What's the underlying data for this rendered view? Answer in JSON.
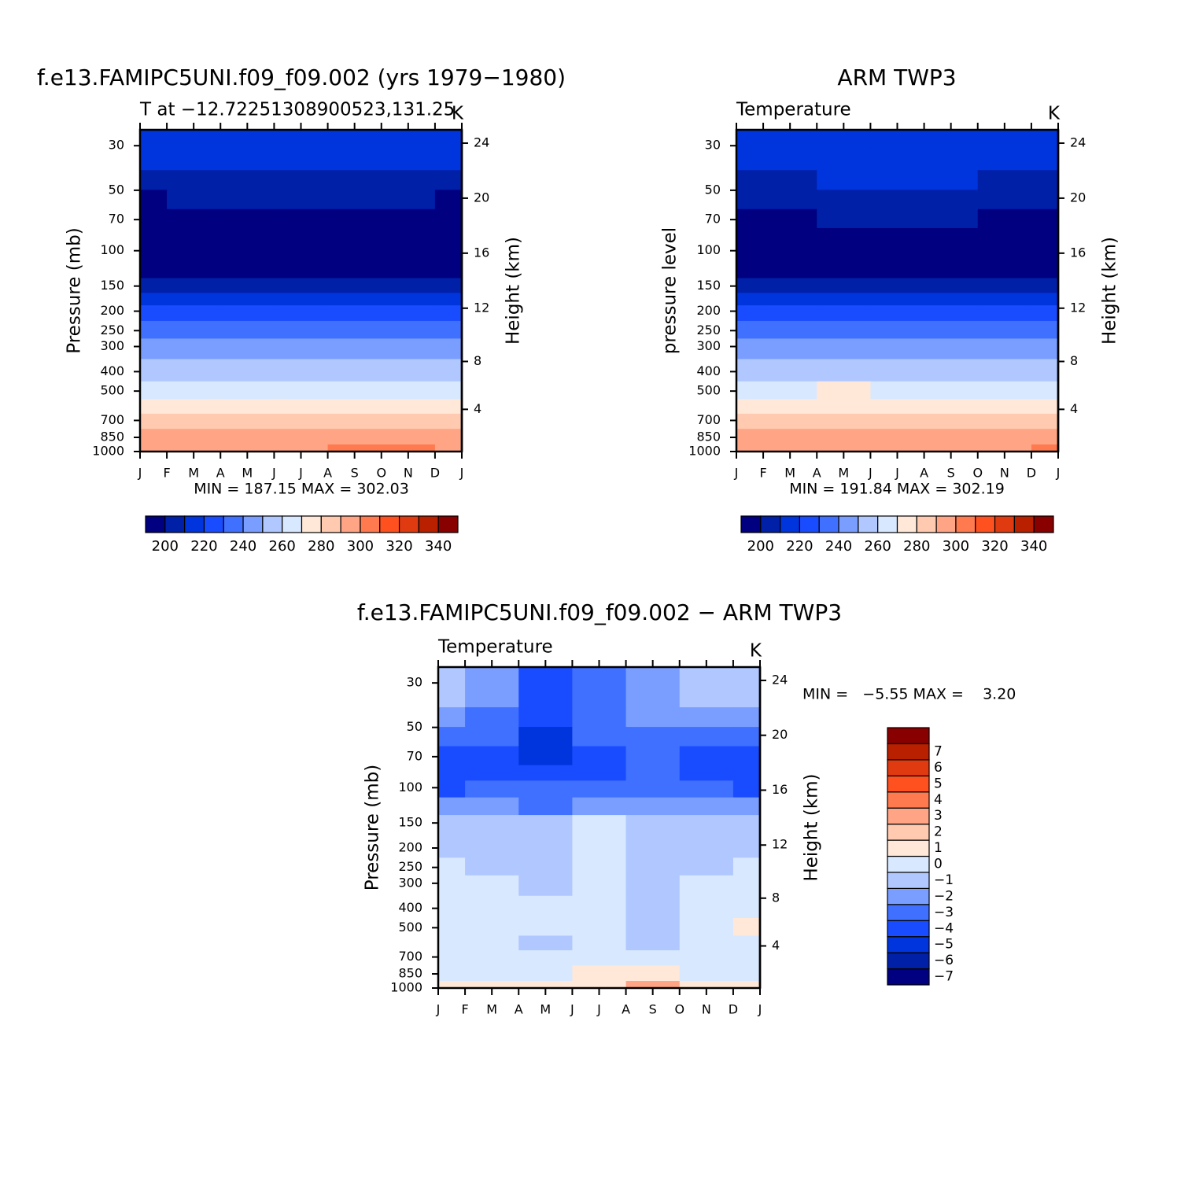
{
  "chart_data": [
    {
      "type": "contour",
      "title": "f.e13.FAMIPC5UNI.f09_f09.002 (yrs 1979−1980)",
      "subtitle": "T at −12.72251308900523,131.25",
      "units": "K",
      "ylabel": "Pressure (mb)",
      "y2label": "Height (km)",
      "stats": "MIN = 187.15 MAX = 302.03",
      "x": [
        0,
        2,
        4,
        6,
        8,
        10,
        12
      ],
      "xlim": [
        0,
        12
      ],
      "xticks": [
        {
          "value": 0,
          "label": "J"
        },
        {
          "value": 1,
          "label": "F"
        },
        {
          "value": 2,
          "label": "M"
        },
        {
          "value": 3,
          "label": "A"
        },
        {
          "value": 4,
          "label": "M"
        },
        {
          "value": 5,
          "label": "J"
        },
        {
          "value": 6,
          "label": "J"
        },
        {
          "value": 7,
          "label": "A"
        },
        {
          "value": 8,
          "label": "S"
        },
        {
          "value": 9,
          "label": "O"
        },
        {
          "value": 10,
          "label": "N"
        },
        {
          "value": 11,
          "label": "D"
        },
        {
          "value": 12,
          "label": "J"
        }
      ],
      "y": [
        27,
        35,
        45,
        55,
        70,
        85,
        100,
        125,
        150,
        175,
        200,
        250,
        300,
        400,
        500,
        600,
        700,
        850,
        1000
      ],
      "ylim": [
        1000,
        25
      ],
      "ylog": true,
      "yticks": [
        30,
        50,
        70,
        100,
        150,
        200,
        250,
        300,
        400,
        500,
        700,
        850,
        1000
      ],
      "y2lim": [
        0.11,
        24.97
      ],
      "y2ticks": [
        4,
        8,
        12,
        16,
        20,
        24
      ],
      "z": [
        [
          213,
          214,
          215,
          216,
          216,
          214,
          213
        ],
        [
          211,
          211,
          212,
          213,
          213,
          212,
          211
        ],
        [
          205,
          206,
          208,
          209,
          208,
          206,
          205
        ],
        [
          199,
          201,
          203,
          204,
          203,
          201,
          199
        ],
        [
          193,
          194,
          196,
          198,
          196,
          194,
          193
        ],
        [
          189,
          189,
          189,
          190,
          190,
          189,
          189
        ],
        [
          190,
          190,
          191,
          191,
          191,
          190,
          190
        ],
        [
          197,
          197,
          198,
          198,
          198,
          197,
          197
        ],
        [
          205,
          205,
          205,
          204,
          205,
          205,
          205
        ],
        [
          213,
          213,
          213,
          212,
          213,
          213,
          213
        ],
        [
          221,
          221,
          221,
          220.5,
          221,
          221,
          221
        ],
        [
          233,
          233,
          232,
          232,
          232,
          233,
          233
        ],
        [
          244,
          244,
          243,
          243,
          243,
          244,
          244
        ],
        [
          258,
          258,
          257,
          257,
          257,
          258,
          258
        ],
        [
          269,
          269,
          268,
          268,
          268,
          269,
          269
        ],
        [
          276,
          276,
          275,
          275,
          276,
          276,
          276
        ],
        [
          282,
          282,
          281,
          281,
          282,
          283,
          282
        ],
        [
          292,
          292,
          291,
          291,
          292,
          293,
          292
        ],
        [
          299,
          299,
          299,
          299,
          300.5,
          300,
          299
        ]
      ],
      "levels": [
        200,
        210,
        220,
        230,
        240,
        250,
        260,
        270,
        280,
        290,
        300,
        310,
        320,
        330,
        340
      ],
      "colors": [
        "#000080",
        "#0020a8",
        "#0034dc",
        "#1a4cff",
        "#4070ff",
        "#7a9eff",
        "#b0c8ff",
        "#d8e8ff",
        "#ffe8d8",
        "#ffcaaf",
        "#ffa585",
        "#ff7a4f",
        "#ff5020",
        "#e03a10",
        "#b82000",
        "#880000"
      ],
      "colorbar": "horizontal",
      "colorbar_ticks": [
        200,
        220,
        240,
        260,
        280,
        300,
        320,
        340
      ]
    },
    {
      "type": "contour",
      "title": "ARM TWP3",
      "subtitle": "Temperature",
      "units": "K",
      "ylabel": "pressure level",
      "y2label": "Height (km)",
      "stats": "MIN = 191.84 MAX = 302.19",
      "x": [
        0,
        2,
        4,
        6,
        8,
        10,
        12
      ],
      "xlim": [
        0,
        12
      ],
      "xticks": [
        {
          "value": 0,
          "label": "J"
        },
        {
          "value": 1,
          "label": "F"
        },
        {
          "value": 2,
          "label": "M"
        },
        {
          "value": 3,
          "label": "A"
        },
        {
          "value": 4,
          "label": "M"
        },
        {
          "value": 5,
          "label": "J"
        },
        {
          "value": 6,
          "label": "J"
        },
        {
          "value": 7,
          "label": "A"
        },
        {
          "value": 8,
          "label": "S"
        },
        {
          "value": 9,
          "label": "O"
        },
        {
          "value": 10,
          "label": "N"
        },
        {
          "value": 11,
          "label": "D"
        },
        {
          "value": 12,
          "label": "J"
        }
      ],
      "y": [
        27,
        35,
        45,
        55,
        70,
        85,
        100,
        125,
        150,
        175,
        200,
        250,
        300,
        400,
        500,
        600,
        700,
        850,
        1000
      ],
      "ylim": [
        1000,
        25
      ],
      "ylog": true,
      "yticks": [
        30,
        50,
        70,
        100,
        150,
        200,
        250,
        300,
        400,
        500,
        700,
        850,
        1000
      ],
      "y2lim": [
        0.11,
        24.97
      ],
      "y2ticks": [
        4,
        8,
        12,
        16,
        20,
        24
      ],
      "z": [
        [
          214,
          215,
          216,
          217,
          217,
          215,
          214
        ],
        [
          211,
          212,
          213,
          214,
          213,
          212,
          211
        ],
        [
          206,
          207,
          210.5,
          211,
          210.5,
          207,
          206
        ],
        [
          201,
          202,
          205,
          206,
          205,
          203,
          201
        ],
        [
          196,
          197,
          200.5,
          201,
          200.5,
          198,
          196
        ],
        [
          192,
          192,
          194,
          196,
          194,
          192,
          192
        ],
        [
          193,
          193,
          193,
          194,
          193,
          193,
          193
        ],
        [
          198,
          198,
          198,
          198,
          198,
          198,
          198
        ],
        [
          206,
          206,
          206,
          206,
          206,
          206,
          206
        ],
        [
          213,
          213,
          213,
          213,
          213,
          213,
          213
        ],
        [
          221,
          221,
          221,
          221,
          221,
          221,
          221
        ],
        [
          233,
          233,
          233,
          233,
          233,
          233,
          233
        ],
        [
          244,
          244,
          244,
          244,
          244,
          244,
          244
        ],
        [
          258,
          258,
          258,
          258,
          258,
          258,
          258
        ],
        [
          269,
          269,
          270.5,
          269,
          269,
          269,
          269
        ],
        [
          276,
          276,
          276,
          276,
          276,
          276,
          276
        ],
        [
          282,
          282,
          282,
          282,
          282,
          282,
          282
        ],
        [
          292,
          292,
          292,
          292,
          292,
          292,
          292
        ],
        [
          299,
          299,
          299,
          299,
          299,
          299,
          300.5
        ]
      ],
      "levels": [
        200,
        210,
        220,
        230,
        240,
        250,
        260,
        270,
        280,
        290,
        300,
        310,
        320,
        330,
        340
      ],
      "colors": [
        "#000080",
        "#0020a8",
        "#0034dc",
        "#1a4cff",
        "#4070ff",
        "#7a9eff",
        "#b0c8ff",
        "#d8e8ff",
        "#ffe8d8",
        "#ffcaaf",
        "#ffa585",
        "#ff7a4f",
        "#ff5020",
        "#e03a10",
        "#b82000",
        "#880000"
      ],
      "colorbar": "horizontal",
      "colorbar_ticks": [
        200,
        220,
        240,
        260,
        280,
        300,
        320,
        340
      ]
    },
    {
      "type": "contour",
      "title": "f.e13.FAMIPC5UNI.f09_f09.002 − ARM TWP3",
      "subtitle": "Temperature",
      "units": "K",
      "ylabel": "Pressure (mb)",
      "y2label": "Height (km)",
      "stats": "MIN =   −5.55 MAX =    3.20",
      "x": [
        0,
        2,
        4,
        6,
        8,
        10,
        12
      ],
      "xlim": [
        0,
        12
      ],
      "xticks": [
        {
          "value": 0,
          "label": "J"
        },
        {
          "value": 1,
          "label": "F"
        },
        {
          "value": 2,
          "label": "M"
        },
        {
          "value": 3,
          "label": "A"
        },
        {
          "value": 4,
          "label": "M"
        },
        {
          "value": 5,
          "label": "J"
        },
        {
          "value": 6,
          "label": "J"
        },
        {
          "value": 7,
          "label": "A"
        },
        {
          "value": 8,
          "label": "S"
        },
        {
          "value": 9,
          "label": "O"
        },
        {
          "value": 10,
          "label": "N"
        },
        {
          "value": 11,
          "label": "D"
        },
        {
          "value": 12,
          "label": "J"
        }
      ],
      "y": [
        27,
        35,
        45,
        55,
        70,
        85,
        100,
        125,
        150,
        175,
        200,
        250,
        300,
        400,
        500,
        600,
        700,
        850,
        1000
      ],
      "ylim": [
        1000,
        25
      ],
      "ylog": true,
      "yticks": [
        30,
        50,
        70,
        100,
        150,
        200,
        250,
        300,
        400,
        500,
        700,
        850,
        1000
      ],
      "y2lim": [
        0.11,
        24.97
      ],
      "y2ticks": [
        4,
        8,
        12,
        16,
        20,
        24
      ],
      "z": [
        [
          -1.5,
          -2.5,
          -4.2,
          -3.5,
          -2.5,
          -1.5,
          -1.5
        ],
        [
          -1.5,
          -2.5,
          -4.2,
          -3.5,
          -2.5,
          -1.8,
          -1.5
        ],
        [
          -2.5,
          -3.5,
          -4.5,
          -3.5,
          -2.8,
          -2.5,
          -2.5
        ],
        [
          -3.5,
          -3.5,
          -5.5,
          -3.8,
          -3.2,
          -3.5,
          -3.5
        ],
        [
          -4.5,
          -4.2,
          -5.2,
          -4.2,
          -3.5,
          -4.5,
          -4.5
        ],
        [
          -4.6,
          -4.3,
          -4.5,
          -4.2,
          -3.8,
          -4.5,
          -4.6
        ],
        [
          -4.5,
          -3.5,
          -3.8,
          -3.5,
          -3.2,
          -3.5,
          -4.5
        ],
        [
          -2.5,
          -2.5,
          -3.2,
          -2.2,
          -2.5,
          -2.5,
          -2.5
        ],
        [
          -2.0,
          -1.8,
          -1.8,
          -0.8,
          -1.8,
          -1.8,
          -2.0
        ],
        [
          -1.8,
          -1.6,
          -1.5,
          -0.6,
          -1.5,
          -1.6,
          -1.8
        ],
        [
          -1.5,
          -1.5,
          -1.5,
          -0.5,
          -1.2,
          -1.5,
          -1.5
        ],
        [
          -0.8,
          -1.2,
          -1.3,
          -0.5,
          -1.3,
          -1.2,
          -0.8
        ],
        [
          -0.6,
          -0.8,
          -1.1,
          -0.5,
          -1.5,
          -0.8,
          -0.6
        ],
        [
          -0.5,
          -0.5,
          -0.6,
          -0.5,
          -1.3,
          -0.5,
          -0.5
        ],
        [
          -0.4,
          -0.5,
          -0.6,
          -0.6,
          -1.2,
          -0.5,
          0.2
        ],
        [
          -0.5,
          -0.7,
          -1.1,
          -0.8,
          -1.1,
          -0.6,
          -0.4
        ],
        [
          -0.4,
          -0.6,
          -0.6,
          -0.5,
          -0.6,
          -0.4,
          -0.4
        ],
        [
          -0.3,
          -0.3,
          -0.2,
          0.2,
          0.3,
          -0.2,
          -0.3
        ],
        [
          0.3,
          0.2,
          0.1,
          0.4,
          2.5,
          0.2,
          0.3
        ]
      ],
      "levels": [
        -7,
        -6,
        -5,
        -4,
        -3,
        -2,
        -1,
        0,
        1,
        2,
        3,
        4,
        5,
        6,
        7
      ],
      "colors": [
        "#000080",
        "#0020a8",
        "#0034dc",
        "#1a4cff",
        "#4070ff",
        "#7a9eff",
        "#b0c8ff",
        "#d8e8ff",
        "#ffe8d8",
        "#ffcaaf",
        "#ffa585",
        "#ff7a4f",
        "#ff5020",
        "#e03a10",
        "#b82000",
        "#880000"
      ],
      "colorbar": "vertical",
      "colorbar_ticks": [
        7,
        6,
        5,
        4,
        3,
        2,
        1,
        0,
        {
          "value": -1,
          "label": "−1"
        },
        {
          "value": -2,
          "label": "−2"
        },
        {
          "value": -3,
          "label": "−3"
        },
        {
          "value": -4,
          "label": "−4"
        },
        {
          "value": -5,
          "label": "−5"
        },
        {
          "value": -6,
          "label": "−6"
        },
        {
          "value": -7,
          "label": "−7"
        }
      ]
    }
  ]
}
